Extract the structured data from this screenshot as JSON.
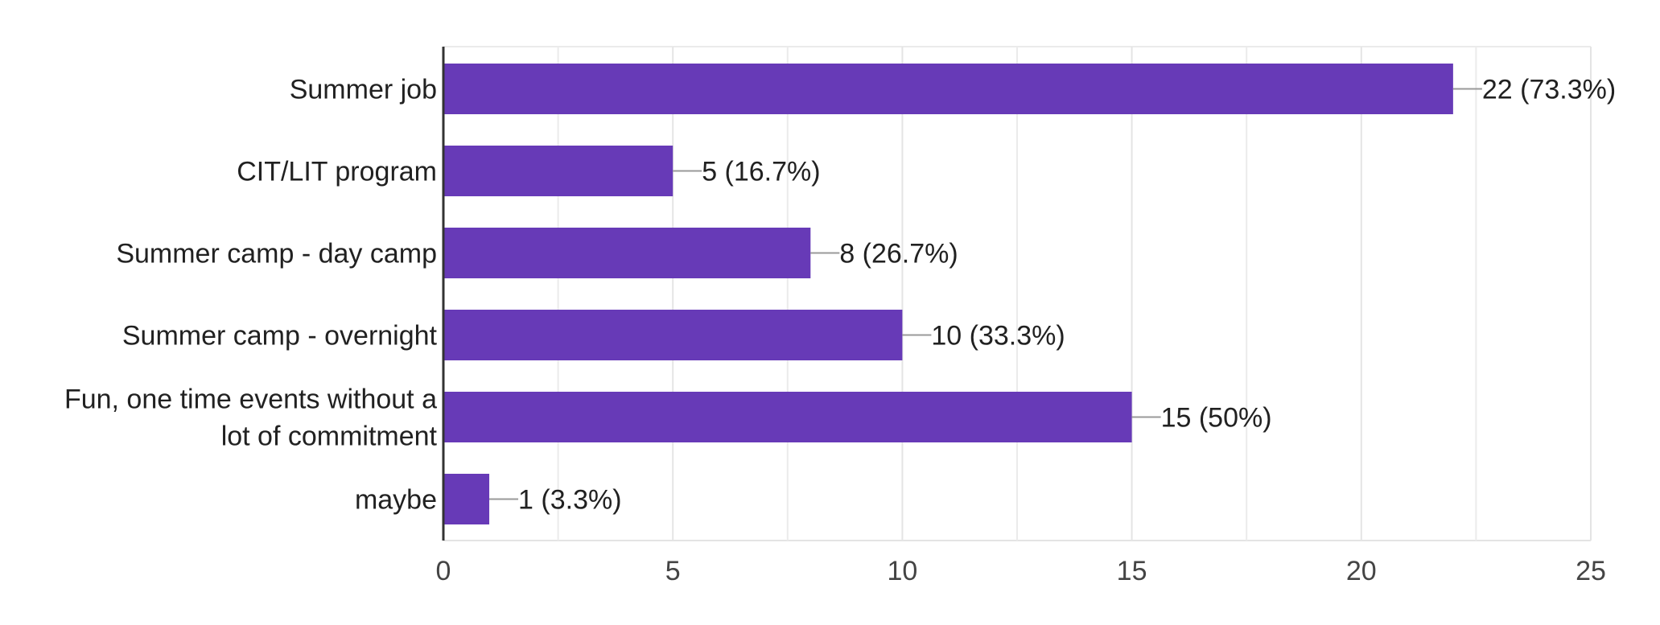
{
  "chart_data": {
    "type": "bar",
    "orientation": "horizontal",
    "categories": [
      "Summer job",
      "CIT/LIT program",
      "Summer camp - day camp",
      "Summer camp - overnight",
      "Fun, one time events without a lot of commitment",
      "maybe"
    ],
    "category_lines": [
      [
        "Summer job"
      ],
      [
        "CIT/LIT program"
      ],
      [
        "Summer camp - day camp"
      ],
      [
        "Summer camp - overnight"
      ],
      [
        "Fun, one time events without a",
        "lot of commitment"
      ],
      [
        "maybe"
      ]
    ],
    "values": [
      22,
      5,
      8,
      10,
      15,
      1
    ],
    "data_labels": [
      "22 (73.3%)",
      "5 (16.7%)",
      "8 (26.7%)",
      "10 (33.3%)",
      "15 (50%)",
      "1 (3.3%)"
    ],
    "xlim": [
      0,
      25
    ],
    "xticks": [
      0,
      5,
      10,
      15,
      20,
      25
    ],
    "minor_grid_step": 2.5,
    "grid": true,
    "title": "",
    "xlabel": "",
    "ylabel": "",
    "legend": "none",
    "colors": {
      "bar": "#673ab7",
      "axis": "#333333",
      "grid": "#ebebeb",
      "leader": "#999999"
    }
  }
}
